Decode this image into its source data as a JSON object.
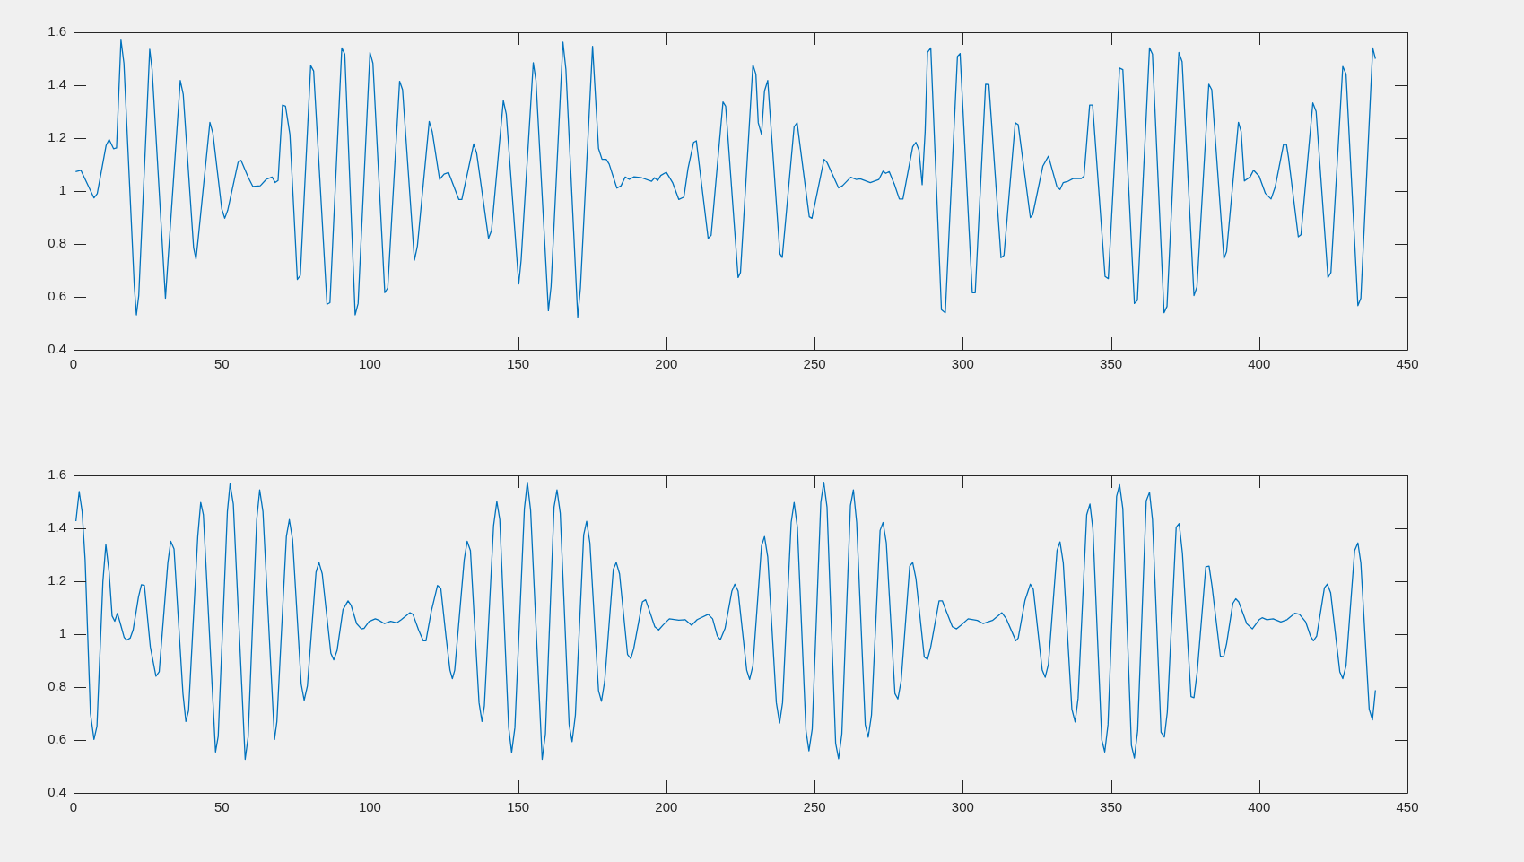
{
  "chart_data": [
    {
      "type": "line",
      "marker": "none",
      "line_style": "solid",
      "xlim": [
        0,
        450
      ],
      "xticks": [
        0,
        50,
        100,
        150,
        200,
        250,
        300,
        350,
        400,
        450
      ],
      "ylim": [
        0.4,
        1.6
      ],
      "yticks": [
        0.4,
        0.6,
        0.8,
        1,
        1.2,
        1.4,
        1.6
      ],
      "series": [
        {
          "color": "#0072bd",
          "x": [
            0.7,
            2.5,
            6.9,
            8,
            11,
            12,
            13.5,
            14.5,
            16,
            17,
            20.5,
            21.2,
            22,
            25.7,
            26.5,
            31,
            36,
            37,
            40.5,
            41.3,
            42,
            46,
            47,
            50,
            51,
            52,
            55.5,
            56.5,
            59,
            60.5,
            63,
            65,
            67,
            68,
            69,
            70.5,
            71.5,
            73,
            75.5,
            76.5,
            80,
            81,
            85.5,
            86.5,
            90.5,
            91.5,
            95,
            96,
            100,
            101,
            105,
            106,
            110,
            111,
            115,
            116,
            120,
            121,
            123.5,
            125,
            126.5,
            130,
            131,
            135,
            136,
            140,
            141,
            145,
            146,
            150.2,
            151,
            155.1,
            156,
            160.2,
            161.1,
            165.1,
            166.1,
            170.1,
            171,
            175.1,
            177.1,
            178.3,
            179.7,
            180.7,
            183.3,
            184.7,
            186.1,
            187.5,
            189.1,
            191.7,
            195,
            196,
            197.1,
            198.1,
            200,
            202.1,
            204.2,
            205.9,
            207.3,
            209.2,
            210.1,
            214.1,
            215.1,
            219.1,
            220,
            224.2,
            225,
            229.2,
            230.2,
            231,
            232.1,
            233.1,
            234.2,
            238.3,
            239.1,
            243.1,
            244.1,
            248.2,
            249.1,
            253.2,
            254.2,
            258.1,
            259.4,
            262.2,
            264,
            265.4,
            268.8,
            271.7,
            273.1,
            274,
            275.2,
            276.9,
            278.6,
            279.8,
            283.1,
            284.2,
            285.2,
            286.3,
            287.3,
            288.1,
            289.2,
            292.8,
            294.1,
            298.2,
            299.1,
            303.2,
            304.2,
            307.7,
            308.8,
            312.9,
            313.9,
            317.7,
            318.7,
            322.8,
            323.6,
            327,
            328.9,
            331.8,
            332.8,
            333.9,
            335.7,
            337.2,
            339.9,
            340.9,
            342.8,
            343.8,
            348,
            349.1,
            352.9,
            354,
            357.9,
            358.9,
            363,
            364,
            367.9,
            368.9,
            372.9,
            374,
            378,
            379,
            383,
            384,
            388.1,
            389,
            393,
            393.9,
            395,
            396.9,
            398.1,
            400,
            402.1,
            404,
            405.4,
            408.2,
            409.2,
            409.9,
            413.2,
            414.1,
            418.1,
            419.2,
            423.2,
            424.2,
            428.2,
            429.3,
            433.3,
            434.3,
            438.3,
            439.2
          ],
          "values": [
            1.073,
            1.078,
            0.974,
            0.99,
            1.173,
            1.195,
            1.16,
            1.163,
            1.571,
            1.483,
            0.64,
            0.532,
            0.605,
            1.536,
            1.46,
            0.595,
            1.418,
            1.366,
            0.786,
            0.743,
            0.815,
            1.26,
            1.219,
            0.933,
            0.897,
            0.927,
            1.108,
            1.116,
            1.05,
            1.017,
            1.02,
            1.044,
            1.053,
            1.032,
            1.04,
            1.325,
            1.321,
            1.214,
            0.666,
            0.681,
            1.474,
            1.454,
            0.572,
            0.578,
            1.541,
            1.518,
            0.532,
            0.575,
            1.524,
            1.483,
            0.616,
            0.634,
            1.415,
            1.383,
            0.739,
            0.792,
            1.263,
            1.225,
            1.044,
            1.064,
            1.07,
            0.968,
            0.968,
            1.178,
            1.143,
            0.821,
            0.851,
            1.342,
            1.29,
            0.649,
            0.739,
            1.485,
            1.418,
            0.548,
            0.64,
            1.563,
            1.46,
            0.523,
            0.634,
            1.547,
            1.161,
            1.12,
            1.12,
            1.102,
            1.011,
            1.02,
            1.053,
            1.044,
            1.054,
            1.05,
            1.037,
            1.05,
            1.04,
            1.059,
            1.071,
            1.032,
            0.968,
            0.977,
            1.085,
            1.184,
            1.19,
            0.821,
            0.833,
            1.337,
            1.321,
            0.673,
            0.692,
            1.477,
            1.442,
            1.258,
            1.214,
            1.378,
            1.418,
            0.763,
            0.749,
            1.243,
            1.258,
            0.903,
            0.897,
            1.12,
            1.108,
            1.012,
            1.02,
            1.052,
            1.044,
            1.046,
            1.032,
            1.044,
            1.075,
            1.067,
            1.073,
            1.026,
            0.97,
            0.97,
            1.167,
            1.184,
            1.155,
            1.024,
            1.225,
            1.524,
            1.541,
            0.552,
            0.54,
            1.509,
            1.52,
            0.616,
            0.616,
            1.404,
            1.403,
            0.748,
            0.757,
            1.258,
            1.251,
            0.9,
            0.911,
            1.094,
            1.132,
            1.015,
            1.006,
            1.032,
            1.038,
            1.047,
            1.047,
            1.056,
            1.325,
            1.325,
            0.677,
            0.669,
            1.465,
            1.459,
            0.575,
            0.587,
            1.541,
            1.518,
            0.54,
            0.564,
            1.524,
            1.489,
            0.605,
            0.637,
            1.404,
            1.383,
            0.745,
            0.771,
            1.26,
            1.225,
            1.038,
            1.053,
            1.079,
            1.056,
            0.991,
            0.97,
            1.015,
            1.176,
            1.176,
            1.126,
            0.827,
            0.835,
            1.333,
            1.301,
            0.673,
            0.692,
            1.471,
            1.442,
            0.567,
            0.595,
            1.541,
            1.5
          ]
        }
      ]
    },
    {
      "type": "line",
      "marker": "none",
      "line_style": "solid",
      "xlim": [
        0,
        450
      ],
      "xticks": [
        0,
        50,
        100,
        150,
        200,
        250,
        300,
        350,
        400,
        450
      ],
      "ylim": [
        0.4,
        1.6
      ],
      "yticks": [
        0.4,
        0.6,
        0.8,
        1,
        1.2,
        1.4,
        1.6
      ],
      "series": [
        {
          "color": "#0072bd",
          "x": [
            0.8,
            1.9,
            2.9,
            3.9,
            5.7,
            6.9,
            7.9,
            9.9,
            10.9,
            12,
            13,
            13.9,
            14.8,
            15.8,
            17.1,
            18,
            19.1,
            20.1,
            21.9,
            22.9,
            23.9,
            25.9,
            27.8,
            28.9,
            31.8,
            32.8,
            33.9,
            36.9,
            37.9,
            38.8,
            41.9,
            42.9,
            43.8,
            47.9,
            48.8,
            51.9,
            52.8,
            53.9,
            57.9,
            58.9,
            61.8,
            62.8,
            63.9,
            67.8,
            68.6,
            71.8,
            72.8,
            73.9,
            76.8,
            77.8,
            78.9,
            81.8,
            82.8,
            83.9,
            86.8,
            87.8,
            88.9,
            90.9,
            92.6,
            93.6,
            95.5,
            97.1,
            98,
            99.7,
            101.8,
            102.8,
            104.9,
            107,
            109.1,
            110.6,
            113.5,
            114.5,
            116.4,
            118,
            118.9,
            120.7,
            122.8,
            123.9,
            125.7,
            127,
            127.8,
            128.6,
            131.8,
            132.8,
            133.9,
            136.8,
            137.8,
            138.6,
            141.7,
            142.8,
            143.8,
            146.8,
            147.8,
            148.9,
            152.1,
            153.1,
            154.2,
            158.1,
            159.2,
            162.1,
            163.1,
            164.2,
            167.2,
            168.2,
            169.3,
            172.1,
            173.1,
            174.2,
            177.1,
            178.1,
            179.2,
            182.1,
            183.1,
            184.2,
            186.9,
            188,
            189,
            191.9,
            193,
            194,
            196.1,
            197.4,
            199,
            201,
            204.2,
            206.3,
            208.5,
            210.4,
            214.1,
            215.6,
            217.2,
            218.2,
            219.8,
            222.1,
            223.1,
            224.2,
            227.1,
            228.1,
            229.2,
            232.1,
            233.1,
            234.2,
            237.1,
            238.2,
            239.2,
            242.1,
            243.1,
            244.2,
            247.1,
            248.1,
            249.2,
            252.1,
            253.1,
            254.2,
            257.1,
            258.1,
            259.2,
            262.1,
            263.1,
            264.2,
            267.1,
            268.1,
            269.2,
            272.1,
            273.1,
            274.2,
            277.1,
            278.1,
            279.2,
            282.1,
            283.1,
            284.2,
            287,
            288.1,
            289.2,
            292,
            293.1,
            294.2,
            296.5,
            297.9,
            299.4,
            301.8,
            304.9,
            306.9,
            310,
            313.2,
            314.7,
            317.9,
            318.7,
            321,
            322.8,
            323.8,
            326.8,
            327.8,
            328.9,
            331.8,
            332.8,
            333.9,
            336.8,
            337.9,
            338.9,
            341.8,
            342.9,
            343.9,
            346.9,
            347.9,
            349,
            351.9,
            352.9,
            354,
            356.9,
            357.9,
            359,
            361.9,
            363,
            364,
            366.9,
            368,
            369,
            372,
            373,
            374.1,
            377,
            378,
            379.1,
            382,
            383.1,
            384.1,
            386.9,
            388,
            389,
            391.1,
            392.1,
            393.1,
            395.8,
            397.7,
            400,
            401,
            402.6,
            404.7,
            407.3,
            409.4,
            412,
            413.6,
            415.7,
            417.3,
            418.3,
            419.4,
            422,
            423,
            424.1,
            427.2,
            428.2,
            429.3,
            432.2,
            433.3,
            434.3,
            437.1,
            438.2,
            439.2
          ],
          "values": [
            1.427,
            1.539,
            1.463,
            1.281,
            0.7,
            0.602,
            0.652,
            1.198,
            1.339,
            1.234,
            1.069,
            1.049,
            1.079,
            1.04,
            0.987,
            0.978,
            0.985,
            1.016,
            1.14,
            1.187,
            1.184,
            0.952,
            0.841,
            0.858,
            1.269,
            1.351,
            1.322,
            0.776,
            0.67,
            0.711,
            1.369,
            1.498,
            1.451,
            0.555,
            0.614,
            1.463,
            1.568,
            1.492,
            0.527,
            0.611,
            1.433,
            1.545,
            1.463,
            0.602,
            0.67,
            1.369,
            1.433,
            1.357,
            0.811,
            0.75,
            0.805,
            1.234,
            1.271,
            1.228,
            0.928,
            0.903,
            0.938,
            1.093,
            1.126,
            1.11,
            1.04,
            1.02,
            1.022,
            1.048,
            1.058,
            1.054,
            1.04,
            1.049,
            1.043,
            1.055,
            1.081,
            1.075,
            1.016,
            0.975,
            0.975,
            1.087,
            1.184,
            1.173,
            0.987,
            0.864,
            0.832,
            0.864,
            1.281,
            1.351,
            1.316,
            0.741,
            0.67,
            0.729,
            1.41,
            1.501,
            1.433,
            0.647,
            0.553,
            0.647,
            1.474,
            1.574,
            1.468,
            0.527,
            0.623,
            1.48,
            1.545,
            1.457,
            0.658,
            0.594,
            0.694,
            1.375,
            1.427,
            1.345,
            0.787,
            0.746,
            0.823,
            1.245,
            1.271,
            1.228,
            0.923,
            0.907,
            0.946,
            1.122,
            1.13,
            1.098,
            1.028,
            1.016,
            1.036,
            1.058,
            1.053,
            1.055,
            1.034,
            1.055,
            1.075,
            1.058,
            0.993,
            0.979,
            1.022,
            1.163,
            1.189,
            1.163,
            0.864,
            0.829,
            0.881,
            1.333,
            1.369,
            1.292,
            0.741,
            0.664,
            0.741,
            1.422,
            1.498,
            1.404,
            0.635,
            0.559,
            0.641,
            1.498,
            1.574,
            1.48,
            0.588,
            0.529,
            0.623,
            1.486,
            1.545,
            1.422,
            0.658,
            0.611,
            0.694,
            1.392,
            1.422,
            1.345,
            0.776,
            0.755,
            0.823,
            1.257,
            1.271,
            1.21,
            0.914,
            0.905,
            0.952,
            1.126,
            1.126,
            1.093,
            1.028,
            1.02,
            1.034,
            1.058,
            1.052,
            1.04,
            1.052,
            1.081,
            1.058,
            0.975,
            0.985,
            1.128,
            1.189,
            1.169,
            0.864,
            0.837,
            0.887,
            1.316,
            1.349,
            1.269,
            0.717,
            0.668,
            0.758,
            1.451,
            1.492,
            1.398,
            0.6,
            0.555,
            0.658,
            1.521,
            1.565,
            1.474,
            0.579,
            0.532,
            0.635,
            1.504,
            1.536,
            1.433,
            0.629,
            0.611,
            0.705,
            1.404,
            1.418,
            1.306,
            0.764,
            0.76,
            0.858,
            1.255,
            1.257,
            1.181,
            0.917,
            0.914,
            0.964,
            1.116,
            1.134,
            1.122,
            1.04,
            1.02,
            1.055,
            1.062,
            1.055,
            1.058,
            1.046,
            1.055,
            1.079,
            1.075,
            1.046,
            0.993,
            0.975,
            0.993,
            1.175,
            1.189,
            1.157,
            0.858,
            0.832,
            0.881,
            1.316,
            1.345,
            1.269,
            0.717,
            0.676,
            0.788
          ]
        }
      ]
    }
  ]
}
